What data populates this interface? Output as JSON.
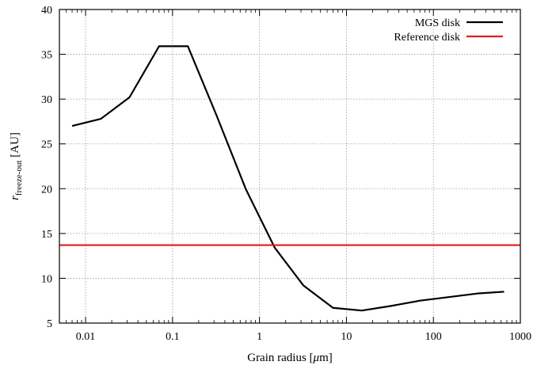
{
  "chart_data": {
    "type": "line",
    "xscale": "log",
    "xlim": [
      0.005,
      1000
    ],
    "ylim": [
      5,
      40
    ],
    "xticks": [
      {
        "value": 0.01,
        "label": "0.01"
      },
      {
        "value": 0.1,
        "label": "0.1"
      },
      {
        "value": 1,
        "label": "1"
      },
      {
        "value": 10,
        "label": "10"
      },
      {
        "value": 100,
        "label": "100"
      },
      {
        "value": 1000,
        "label": "1000"
      }
    ],
    "yticks": [
      {
        "value": 5,
        "label": "5"
      },
      {
        "value": 10,
        "label": "10"
      },
      {
        "value": 15,
        "label": "15"
      },
      {
        "value": 20,
        "label": "20"
      },
      {
        "value": 25,
        "label": "25"
      },
      {
        "value": 30,
        "label": "30"
      },
      {
        "value": 35,
        "label": "35"
      },
      {
        "value": 40,
        "label": "40"
      }
    ],
    "xlabel": {
      "text": "Grain radius [",
      "greek": "μ",
      "unit_tail": "m]"
    },
    "ylabel": {
      "symbol": "r",
      "subscript": "freeze-out",
      "unit": " [AU]"
    },
    "grid": true,
    "legend_position": "top-right",
    "series": [
      {
        "name": "MGS disk",
        "color": "#000000",
        "points": [
          [
            0.007,
            27.0
          ],
          [
            0.015,
            27.8
          ],
          [
            0.032,
            30.2
          ],
          [
            0.07,
            35.9
          ],
          [
            0.15,
            35.9
          ],
          [
            0.32,
            28.2
          ],
          [
            0.7,
            19.9
          ],
          [
            1.5,
            13.4
          ],
          [
            3.2,
            9.2
          ],
          [
            7.0,
            6.7
          ],
          [
            15.0,
            6.4
          ],
          [
            32.0,
            6.9
          ],
          [
            70.0,
            7.5
          ],
          [
            150.0,
            7.9
          ],
          [
            320.0,
            8.3
          ],
          [
            650.0,
            8.5
          ]
        ]
      },
      {
        "name": "Reference disk",
        "color": "#e41a1c",
        "points": [
          [
            0.005,
            13.7
          ],
          [
            1000.0,
            13.7
          ]
        ]
      }
    ]
  }
}
